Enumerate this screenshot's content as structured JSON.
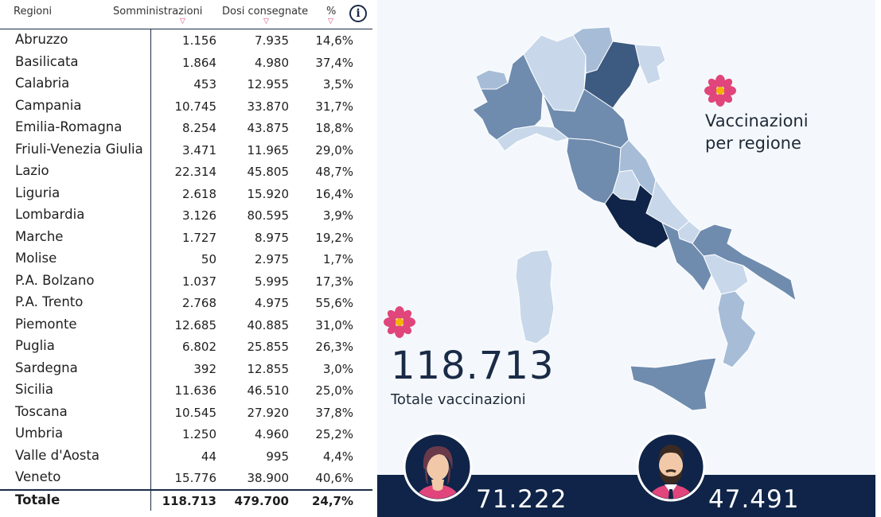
{
  "table": {
    "headers": {
      "region": "Regioni",
      "administrations": "Somministrazioni",
      "delivered": "Dosi consegnate",
      "percent": "%"
    },
    "info_icon": "i",
    "sort_icon": "sort-down-icon",
    "rows": [
      {
        "region": "Abruzzo",
        "administrations": "1.156",
        "delivered": "7.935",
        "percent": "14,6%"
      },
      {
        "region": "Basilicata",
        "administrations": "1.864",
        "delivered": "4.980",
        "percent": "37,4%"
      },
      {
        "region": "Calabria",
        "administrations": "453",
        "delivered": "12.955",
        "percent": "3,5%"
      },
      {
        "region": "Campania",
        "administrations": "10.745",
        "delivered": "33.870",
        "percent": "31,7%"
      },
      {
        "region": "Emilia-Romagna",
        "administrations": "8.254",
        "delivered": "43.875",
        "percent": "18,8%"
      },
      {
        "region": "Friuli-Venezia Giulia",
        "administrations": "3.471",
        "delivered": "11.965",
        "percent": "29,0%"
      },
      {
        "region": "Lazio",
        "administrations": "22.314",
        "delivered": "45.805",
        "percent": "48,7%"
      },
      {
        "region": "Liguria",
        "administrations": "2.618",
        "delivered": "15.920",
        "percent": "16,4%"
      },
      {
        "region": "Lombardia",
        "administrations": "3.126",
        "delivered": "80.595",
        "percent": "3,9%"
      },
      {
        "region": "Marche",
        "administrations": "1.727",
        "delivered": "8.975",
        "percent": "19,2%"
      },
      {
        "region": "Molise",
        "administrations": "50",
        "delivered": "2.975",
        "percent": "1,7%"
      },
      {
        "region": "P.A. Bolzano",
        "administrations": "1.037",
        "delivered": "5.995",
        "percent": "17,3%"
      },
      {
        "region": "P.A. Trento",
        "administrations": "2.768",
        "delivered": "4.975",
        "percent": "55,6%"
      },
      {
        "region": "Piemonte",
        "administrations": "12.685",
        "delivered": "40.885",
        "percent": "31,0%"
      },
      {
        "region": "Puglia",
        "administrations": "6.802",
        "delivered": "25.855",
        "percent": "26,3%"
      },
      {
        "region": "Sardegna",
        "administrations": "392",
        "delivered": "12.855",
        "percent": "3,0%"
      },
      {
        "region": "Sicilia",
        "administrations": "11.636",
        "delivered": "46.510",
        "percent": "25,0%"
      },
      {
        "region": "Toscana",
        "administrations": "10.545",
        "delivered": "27.920",
        "percent": "37,8%"
      },
      {
        "region": "Umbria",
        "administrations": "1.250",
        "delivered": "4.960",
        "percent": "25,2%"
      },
      {
        "region": "Valle d'Aosta",
        "administrations": "44",
        "delivered": "995",
        "percent": "4,4%"
      },
      {
        "region": "Veneto",
        "administrations": "15.776",
        "delivered": "38.900",
        "percent": "40,6%"
      }
    ],
    "total": {
      "region": "Totale",
      "administrations": "118.713",
      "delivered": "479.700",
      "percent": "24,7%"
    }
  },
  "map": {
    "label_line1": "Vaccinazioni",
    "label_line2": "per regione",
    "flower_icon": "flower-icon"
  },
  "summary": {
    "total_vaccinations": "118.713",
    "total_label": "Totale vaccinazioni",
    "women": "71.222",
    "men": "47.491",
    "women_icon": "woman-avatar-icon",
    "men_icon": "man-avatar-icon"
  },
  "colors": {
    "navy": "#0f2448",
    "dark": "#1b3a63",
    "mid_dark": "#3d5a80",
    "mid": "#6f8caf",
    "light": "#a7bdd7",
    "lighter": "#c8d8ea",
    "accent_pink": "#e0457b"
  }
}
